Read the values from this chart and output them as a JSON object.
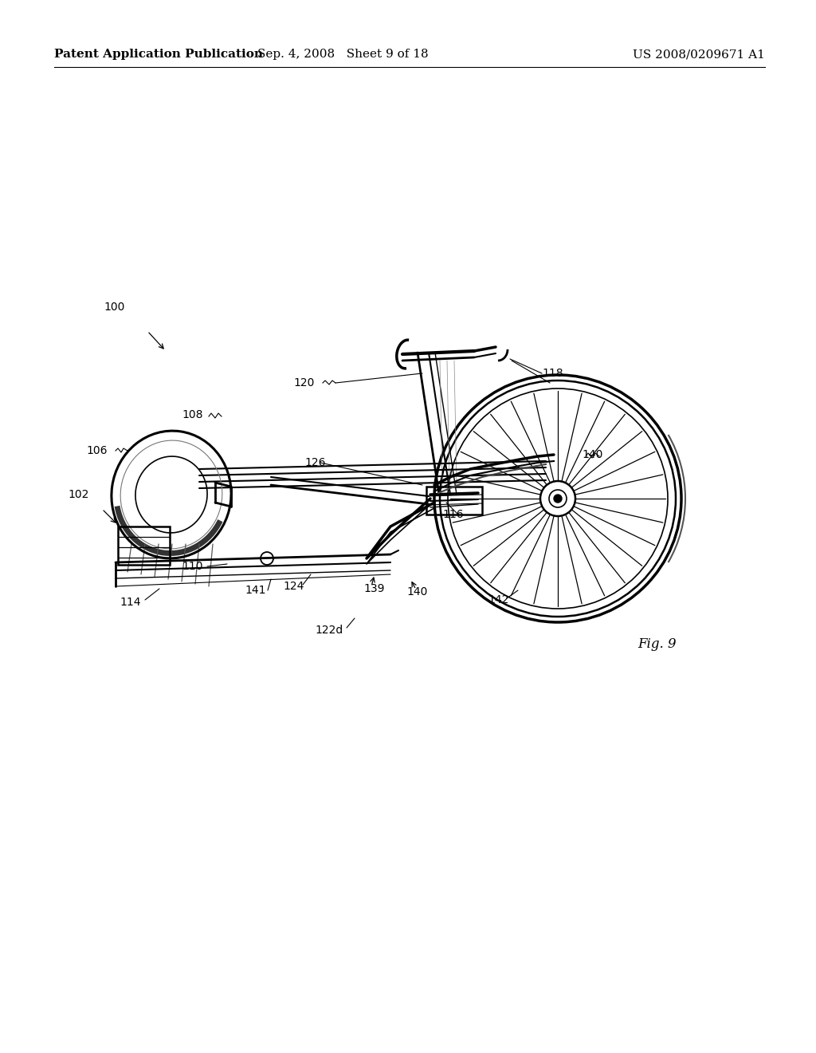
{
  "background_color": "#ffffff",
  "header_left": "Patent Application Publication",
  "header_mid": "Sep. 4, 2008   Sheet 9 of 18",
  "header_right": "US 2008/0209671 A1",
  "fig_label": "Fig. 9",
  "label_fontsize": 10,
  "header_fontsize": 11
}
